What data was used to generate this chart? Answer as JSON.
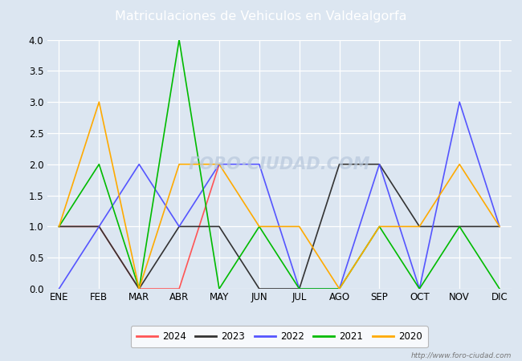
{
  "title": "Matriculaciones de Vehiculos en Valdealgorfa",
  "title_color": "white",
  "title_bg_color": "#5b9bd5",
  "months": [
    "ENE",
    "FEB",
    "MAR",
    "ABR",
    "MAY",
    "JUN",
    "JUL",
    "AGO",
    "SEP",
    "OCT",
    "NOV",
    "DIC"
  ],
  "series": {
    "2024": {
      "values": [
        1,
        1,
        0,
        0,
        2,
        null,
        null,
        null,
        null,
        null,
        null,
        null
      ],
      "color": "#ff5555",
      "linewidth": 1.2
    },
    "2023": {
      "values": [
        1,
        1,
        0,
        1,
        1,
        0,
        0,
        2,
        2,
        1,
        1,
        1
      ],
      "color": "#333333",
      "linewidth": 1.2
    },
    "2022": {
      "values": [
        0,
        1,
        2,
        1,
        2,
        2,
        0,
        0,
        2,
        0,
        3,
        1
      ],
      "color": "#5555ff",
      "linewidth": 1.2
    },
    "2021": {
      "values": [
        1,
        2,
        0,
        4,
        0,
        1,
        0,
        0,
        1,
        0,
        1,
        0
      ],
      "color": "#00bb00",
      "linewidth": 1.2
    },
    "2020": {
      "values": [
        1,
        3,
        0,
        2,
        2,
        1,
        1,
        0,
        1,
        1,
        2,
        1
      ],
      "color": "#ffaa00",
      "linewidth": 1.2
    }
  },
  "ylim": [
    0,
    4.0
  ],
  "yticks": [
    0.0,
    0.5,
    1.0,
    1.5,
    2.0,
    2.5,
    3.0,
    3.5,
    4.0
  ],
  "grid_color": "white",
  "plot_bg_color": "#dce6f1",
  "fig_bg_color": "#dce6f1",
  "watermark_text": "http://www.foro-ciudad.com",
  "chart_watermark": "FORO·CIUDAD.COM",
  "legend_order": [
    "2024",
    "2023",
    "2022",
    "2021",
    "2020"
  ]
}
